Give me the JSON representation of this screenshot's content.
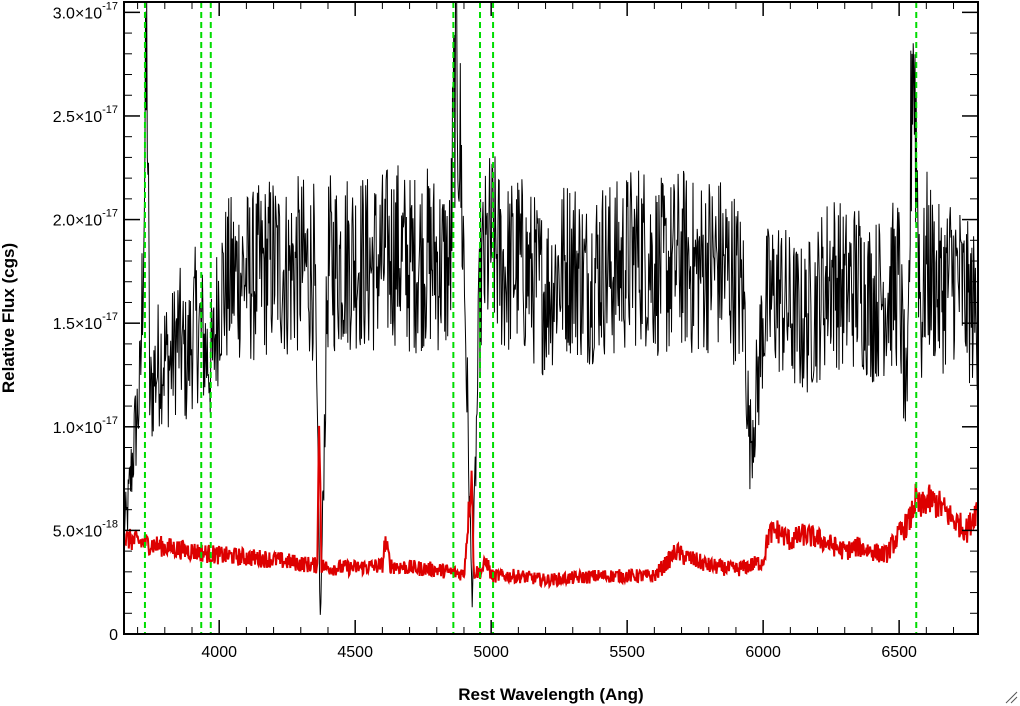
{
  "chart_data": {
    "type": "line",
    "title": "",
    "xlabel": "Rest Wavelength (Ang)",
    "ylabel": "Relative Flux (cgs)",
    "xlim": [
      3650,
      6790
    ],
    "ylim": [
      0,
      3.05e-17
    ],
    "x_ticks": [
      {
        "value": 4000,
        "label": "4000"
      },
      {
        "value": 4500,
        "label": "4500"
      },
      {
        "value": 5000,
        "label": "5000"
      },
      {
        "value": 5500,
        "label": "5500"
      },
      {
        "value": 6000,
        "label": "6000"
      },
      {
        "value": 6500,
        "label": "6500"
      }
    ],
    "y_ticks": [
      {
        "value": 0,
        "mantissa": "0",
        "exponent": ""
      },
      {
        "value": 5e-18,
        "mantissa": "5.0×10",
        "exponent": "-18"
      },
      {
        "value": 1e-17,
        "mantissa": "1.0×10",
        "exponent": "-17"
      },
      {
        "value": 1.5e-17,
        "mantissa": "1.5×10",
        "exponent": "-17"
      },
      {
        "value": 2e-17,
        "mantissa": "2.0×10",
        "exponent": "-17"
      },
      {
        "value": 2.5e-17,
        "mantissa": "2.5×10",
        "exponent": "-17"
      },
      {
        "value": 3e-17,
        "mantissa": "3.0×10",
        "exponent": "-17"
      }
    ],
    "grid": false,
    "legend": "none",
    "series": [
      {
        "color": "#000000",
        "x": [
          3660,
          3685,
          3710,
          3735,
          3745,
          3760,
          3790,
          3820,
          3850,
          3880,
          3910,
          3935,
          3955,
          3975,
          4000,
          4040,
          4080,
          4120,
          4160,
          4200,
          4250,
          4300,
          4350,
          4372,
          4400,
          4450,
          4500,
          4550,
          4600,
          4650,
          4700,
          4750,
          4800,
          4850,
          4870,
          4900,
          4930,
          4960,
          5000,
          5050,
          5100,
          5150,
          5200,
          5250,
          5300,
          5350,
          5400,
          5450,
          5500,
          5550,
          5600,
          5650,
          5700,
          5750,
          5800,
          5850,
          5900,
          5930,
          5950,
          5980,
          6000,
          6050,
          6100,
          6150,
          6200,
          6250,
          6300,
          6350,
          6400,
          6450,
          6500,
          6530,
          6550,
          6580,
          6600,
          6650,
          6700,
          6750,
          6790
        ],
        "y": [
          5.5e-18,
          9e-18,
          1.2e-17,
          2.8e-17,
          1.1e-17,
          1.25e-17,
          1.35e-17,
          1.3e-17,
          1.45e-17,
          1.3e-17,
          1.5e-17,
          1.45e-17,
          1.35e-17,
          1.3e-17,
          1.65e-17,
          1.7e-17,
          1.75e-17,
          1.72e-17,
          1.75e-17,
          1.8e-17,
          1.75e-17,
          1.78e-17,
          1.75e-17,
          5e-19,
          1.78e-17,
          1.8e-17,
          1.82e-17,
          1.78e-17,
          1.8e-17,
          1.85e-17,
          1.78e-17,
          1.82e-17,
          1.8e-17,
          1.75e-17,
          2.9e-17,
          1.8e-17,
          1.5e-18,
          1.7e-17,
          1.9e-17,
          1.75e-17,
          1.8e-17,
          1.72e-17,
          1.65e-17,
          1.75e-17,
          1.8e-17,
          1.7e-17,
          1.78e-17,
          1.75e-17,
          1.8e-17,
          1.85e-17,
          1.78e-17,
          1.75e-17,
          1.82e-17,
          1.75e-17,
          1.8e-17,
          1.78e-17,
          1.72e-17,
          1.6e-17,
          9e-18,
          1.2e-17,
          1.55e-17,
          1.65e-17,
          1.55e-17,
          1.5e-17,
          1.6e-17,
          1.75e-17,
          1.65e-17,
          1.7e-17,
          1.6e-17,
          1.65e-17,
          1.7e-17,
          1e-17,
          3e-17,
          1.5e-17,
          1.8e-17,
          1.65e-17,
          1.75e-17,
          1.6e-17,
          1.55e-17
        ],
        "noise": 0.25
      },
      {
        "color": "#dd0000",
        "x": [
          3650,
          3800,
          3900,
          4000,
          4100,
          4200,
          4300,
          4360,
          4368,
          4376,
          4400,
          4500,
          4600,
          4610,
          4630,
          4700,
          4800,
          4900,
          4930,
          4935,
          4960,
          4985,
          5000,
          5100,
          5200,
          5300,
          5400,
          5500,
          5600,
          5650,
          5680,
          5700,
          5800,
          5900,
          6000,
          6020,
          6050,
          6100,
          6150,
          6200,
          6250,
          6300,
          6350,
          6400,
          6450,
          6500,
          6540,
          6560,
          6580,
          6600,
          6650,
          6700,
          6750,
          6790
        ],
        "y": [
          4.6e-18,
          4.2e-18,
          4e-18,
          3.8e-18,
          3.7e-18,
          3.6e-18,
          3.4e-18,
          3.3e-18,
          1.05e-17,
          3.3e-18,
          3.2e-18,
          3.2e-18,
          3.3e-18,
          4.5e-18,
          3.3e-18,
          3.2e-18,
          3.1e-18,
          2.9e-18,
          8e-18,
          3e-18,
          3e-18,
          3.5e-18,
          2.8e-18,
          2.8e-18,
          2.6e-18,
          2.7e-18,
          2.8e-18,
          2.8e-18,
          2.8e-18,
          3.5e-18,
          4e-18,
          3.8e-18,
          3.3e-18,
          3.1e-18,
          3.5e-18,
          4.8e-18,
          5e-18,
          4.5e-18,
          4.8e-18,
          4.6e-18,
          4.3e-18,
          4e-18,
          4.2e-18,
          4e-18,
          3.8e-18,
          4.8e-18,
          5.5e-18,
          6.5e-18,
          6e-18,
          6.5e-18,
          6.2e-18,
          5.5e-18,
          5e-18,
          6.2e-18
        ],
        "noise": 0.12
      }
    ],
    "vertical_lines": {
      "color": "#00dd00",
      "style": "dashed",
      "x": [
        3727,
        3934,
        3969,
        4861,
        4959,
        5007,
        6563
      ]
    }
  }
}
